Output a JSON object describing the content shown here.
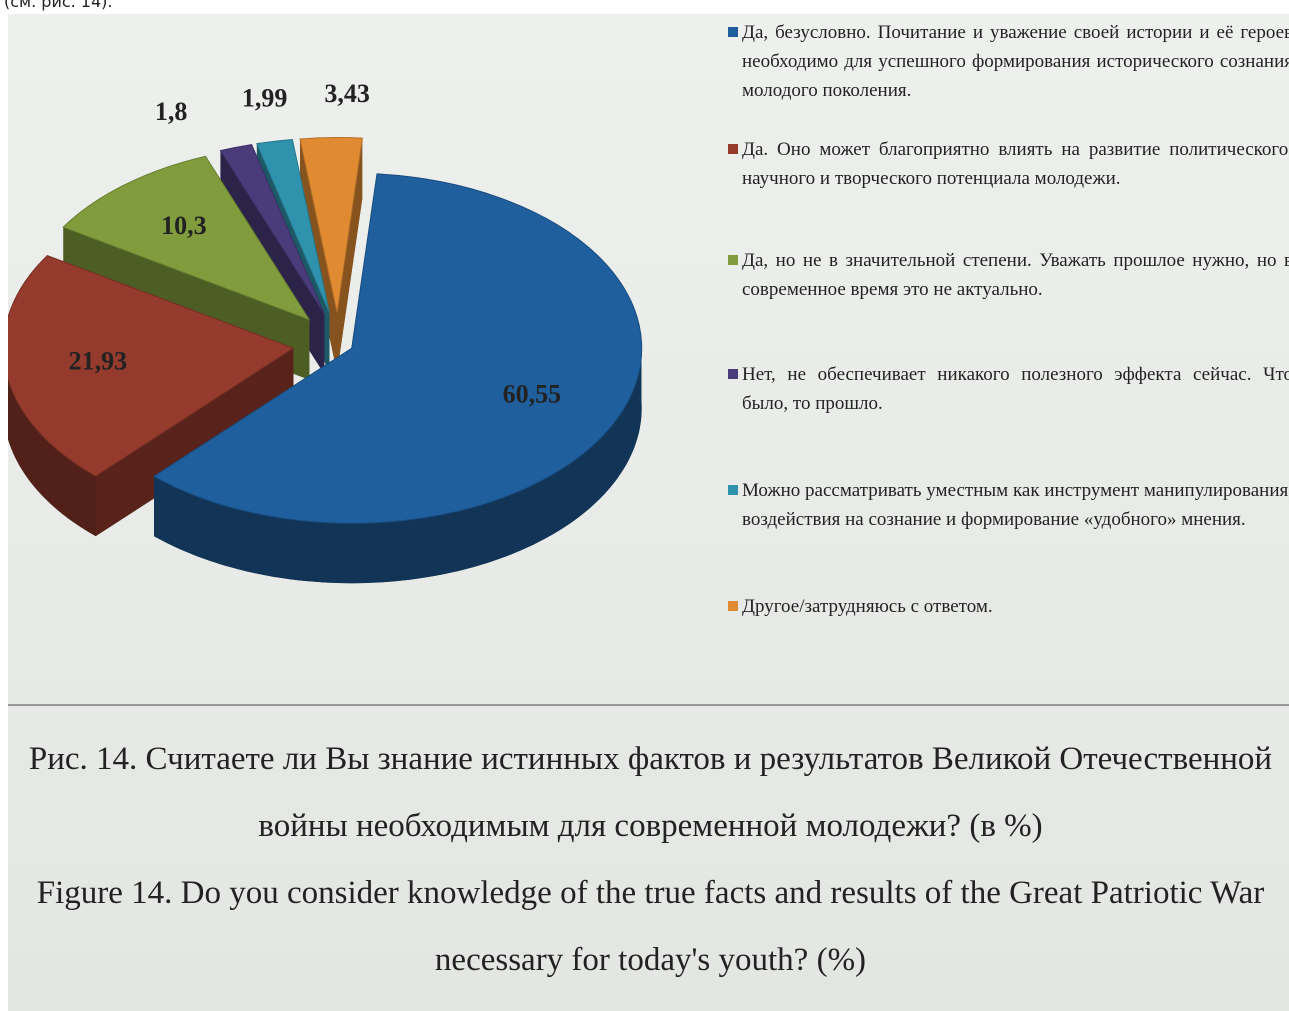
{
  "header_text": "(см. рис. 14).",
  "chart_data": {
    "type": "pie",
    "categories": [
      "Да, безусловно. Почитание и уважение своей истории и её героев необходимо для успешного формирования исторического сознания молодого поколения.",
      "Да. Оно может благоприятно влиять на развитие политического, научного и творческого потенциала молодежи.",
      "Да, но не в значительной степени. Уважать прошлое нужно, но в современное время это не актуально.",
      "Нет, не обеспечивает никакого полезного эффекта сейчас. Что было, то прошло.",
      "Можно рассматривать уместным как инструмент манипулирования, воздействия на сознание и формирование «удобного» мнения.",
      "Другое/затрудняюсь с ответом."
    ],
    "values": [
      60.55,
      21.93,
      10.3,
      1.8,
      1.99,
      3.43
    ],
    "value_labels": [
      "60,55",
      "21,93",
      "10,3",
      "1,8",
      "1,99",
      "3,43"
    ],
    "colors": [
      "#1f5f9e",
      "#943b2d",
      "#809c3c",
      "#4a3b7a",
      "#2f93ad",
      "#e08b32"
    ],
    "legend": "right"
  },
  "caption": {
    "ru": "Рис. 14. Считаете ли Вы знание истинных фактов и результатов Великой Отечественной войны необходимым для современной молодежи? (в %)",
    "en": "Figure 14. Do you consider knowledge of the true facts and results of the Great Patriotic War necessary for today's youth? (%)"
  }
}
